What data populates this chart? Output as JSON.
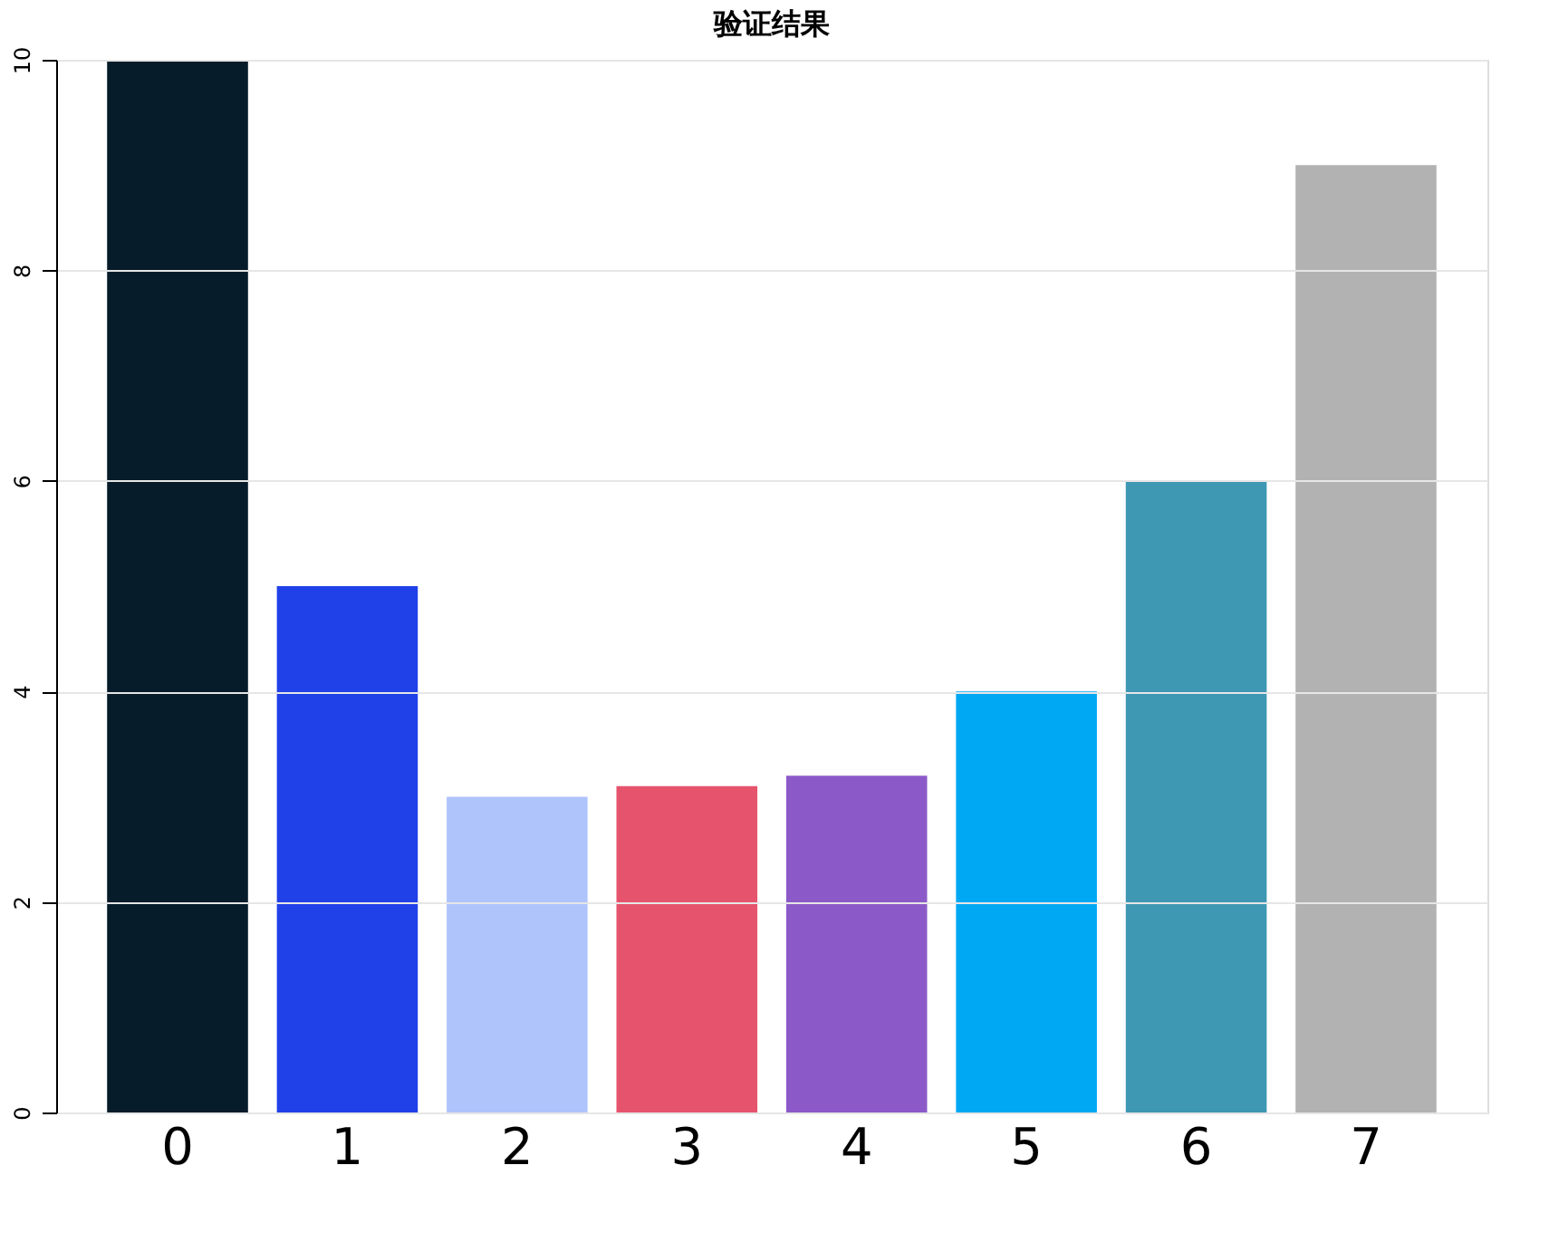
{
  "chart_data": {
    "type": "bar",
    "title": "验证结果",
    "categories": [
      "0",
      "1",
      "2",
      "3",
      "4",
      "5",
      "6",
      "7"
    ],
    "values": [
      10,
      5,
      3,
      3.1,
      3.2,
      4,
      6,
      9
    ],
    "colors": [
      "#061c2a",
      "#2040e8",
      "#b0c4fc",
      "#e5546c",
      "#8c5ac8",
      "#00a8f4",
      "#3e98b4",
      "#b2b2b2"
    ],
    "ylim": [
      0,
      10
    ],
    "yticks": [
      0,
      2,
      4,
      6,
      8,
      10
    ],
    "grid": "y"
  }
}
